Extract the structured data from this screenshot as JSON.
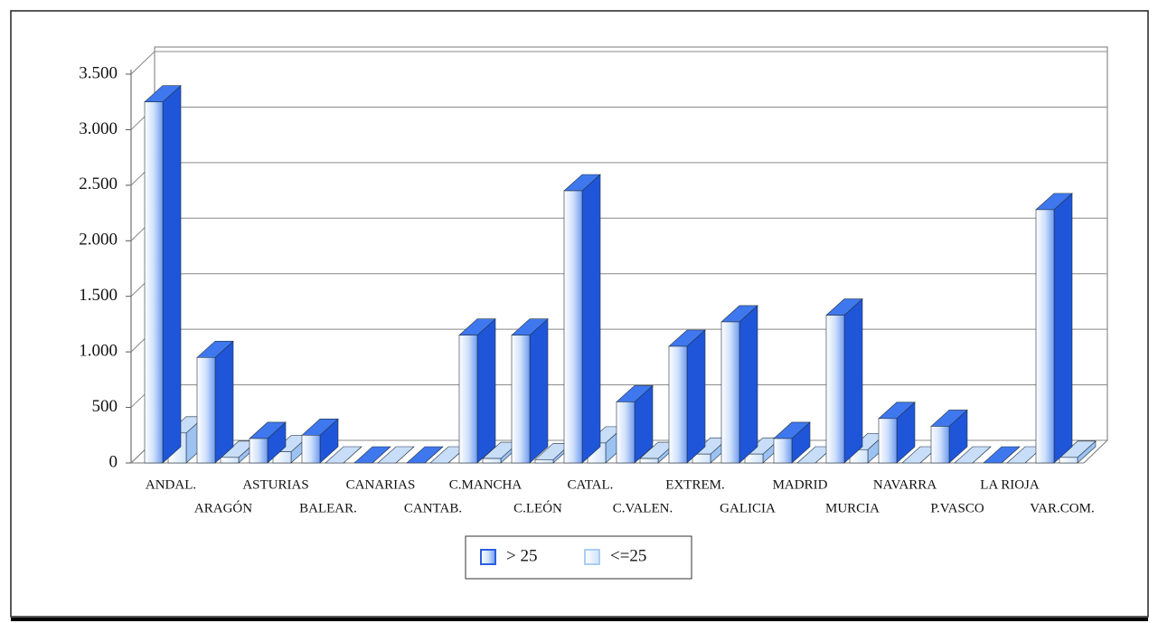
{
  "chart_data": {
    "type": "bar3d",
    "categories": [
      "ANDAL.",
      "ARAGÓN",
      "ASTURIAS",
      "BALEAR.",
      "CANARIAS",
      "CANTAB.",
      "C.MANCHA",
      "C.LEÓN",
      "CATAL.",
      "C.VALEN.",
      "EXTREM.",
      "GALICIA",
      "MADRID",
      "MURCIA",
      "NAVARRA",
      "P.VASCO",
      "LA RIOJA",
      "VAR.COM."
    ],
    "series": [
      {
        "name": "> 25",
        "color": "#2a5fe0",
        "values": [
          3250,
          950,
          220,
          250,
          0,
          0,
          1150,
          1150,
          2450,
          550,
          1050,
          1270,
          220,
          1330,
          400,
          330,
          0,
          2280
        ]
      },
      {
        "name": "<=25",
        "color": "#a9cdf5",
        "values": [
          270,
          50,
          100,
          0,
          0,
          0,
          40,
          30,
          180,
          40,
          80,
          80,
          0,
          120,
          0,
          0,
          0,
          50
        ]
      }
    ],
    "ylim": [
      0,
      3500
    ],
    "yticks": [
      0,
      500,
      {
        "value": 1000,
        "label": "1.000"
      },
      {
        "value": 1500,
        "label": "1.500"
      },
      {
        "value": 2000,
        "label": "2.000"
      },
      {
        "value": 2500,
        "label": "2.500"
      },
      {
        "value": 3000,
        "label": "3.000"
      },
      {
        "value": 3500,
        "label": "3.500"
      }
    ],
    "grid": true,
    "legend": "bottom"
  }
}
